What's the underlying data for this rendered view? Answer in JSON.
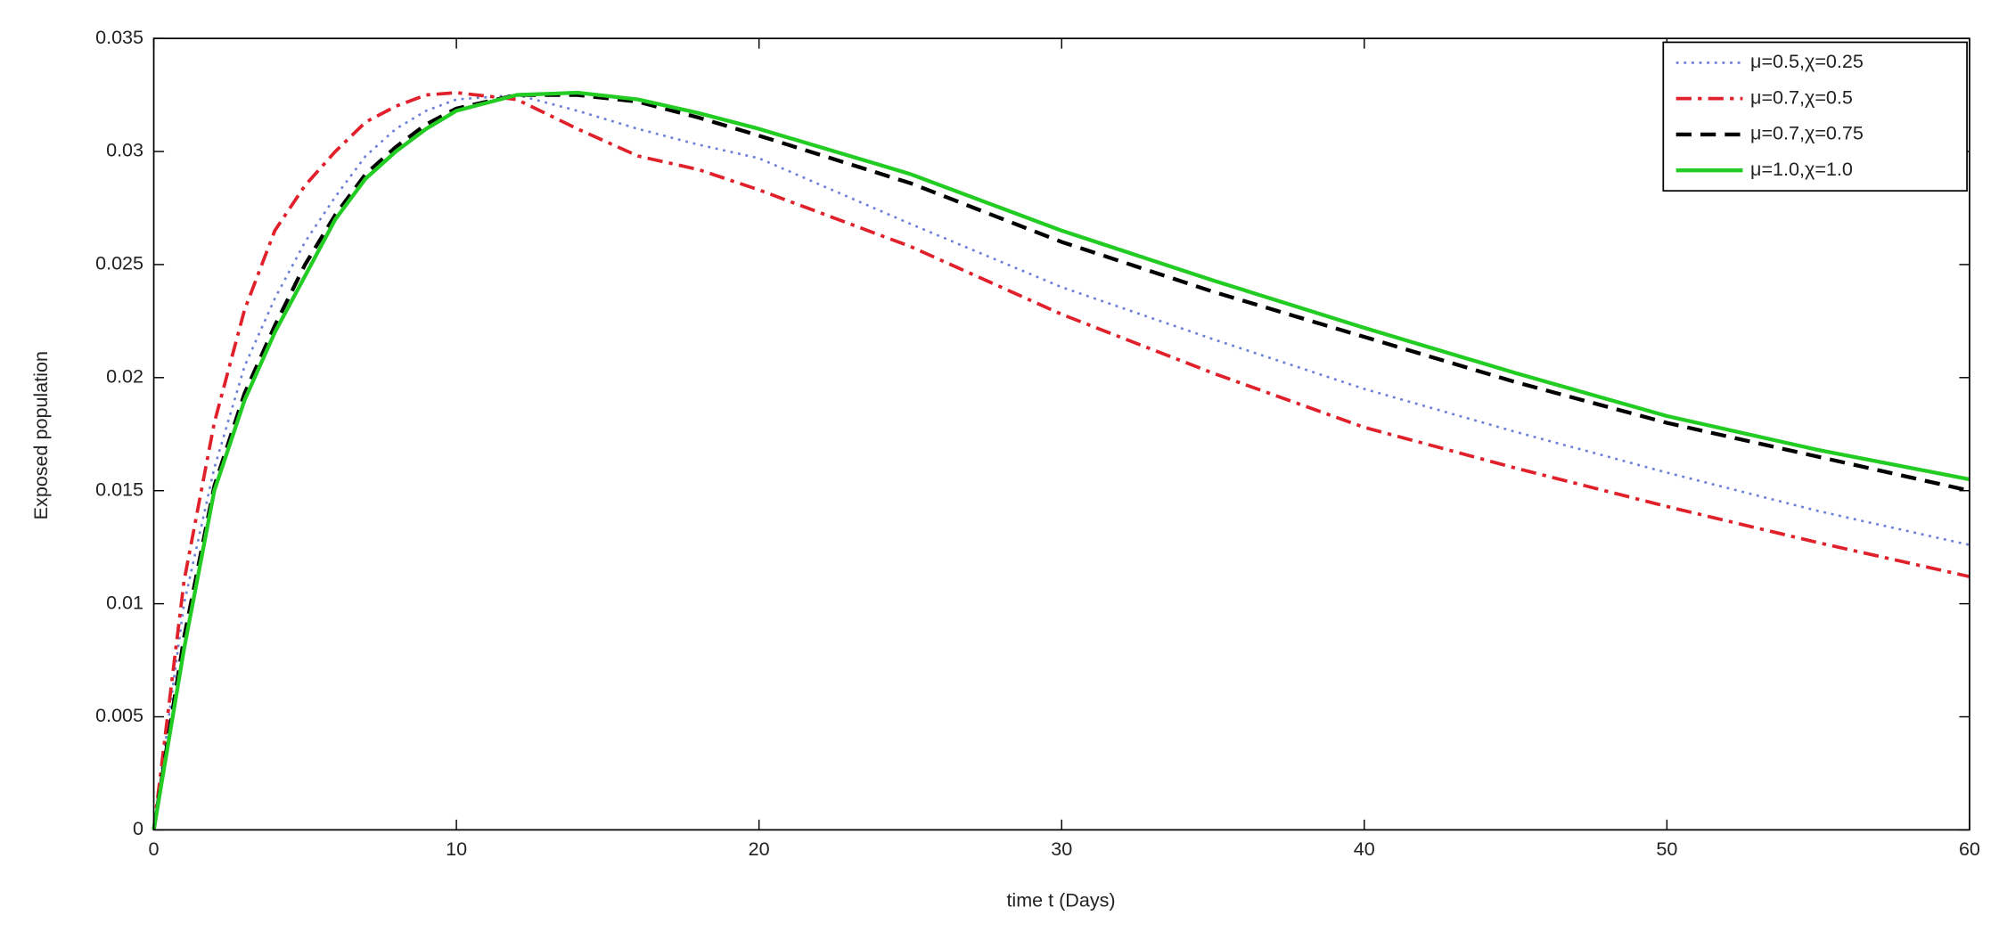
{
  "chart_data": {
    "type": "line",
    "xlabel": "time t (Days)",
    "ylabel": "Exposed population",
    "x": [
      0,
      1,
      2,
      3,
      4,
      5,
      6,
      7,
      8,
      9,
      10,
      12,
      14,
      16,
      18,
      20,
      25,
      30,
      35,
      40,
      45,
      50,
      55,
      60
    ],
    "series": [
      {
        "name": "μ=0.5,χ=0.25",
        "color": "#6b7fd7",
        "dash": "dotted",
        "values": [
          0,
          0.01,
          0.016,
          0.0205,
          0.0235,
          0.026,
          0.028,
          0.0298,
          0.031,
          0.0318,
          0.0323,
          0.0325,
          0.0318,
          0.031,
          0.0303,
          0.0297,
          0.0268,
          0.024,
          0.0217,
          0.0195,
          0.0176,
          0.0158,
          0.0141,
          0.0126
        ]
      },
      {
        "name": "μ=0.7,χ=0.5",
        "color": "#e0202a",
        "dash": "dashdot",
        "values": [
          0,
          0.011,
          0.018,
          0.023,
          0.0265,
          0.0285,
          0.03,
          0.0313,
          0.032,
          0.0325,
          0.0326,
          0.0323,
          0.031,
          0.0298,
          0.0292,
          0.0283,
          0.0258,
          0.0228,
          0.0202,
          0.0178,
          0.016,
          0.0143,
          0.0127,
          0.0112
        ]
      },
      {
        "name": "μ=0.7,χ=0.75",
        "color": "#000000",
        "dash": "dashed",
        "values": [
          0,
          0.0085,
          0.0152,
          0.0193,
          0.0223,
          0.025,
          0.0272,
          0.029,
          0.0302,
          0.0312,
          0.0319,
          0.0325,
          0.0325,
          0.0322,
          0.0315,
          0.0307,
          0.0286,
          0.026,
          0.0238,
          0.0218,
          0.0198,
          0.018,
          0.0165,
          0.015
        ]
      },
      {
        "name": "μ=1.0,χ=1.0",
        "color": "#22cc22",
        "dash": "solid",
        "values": [
          0,
          0.008,
          0.015,
          0.019,
          0.022,
          0.0245,
          0.027,
          0.0288,
          0.03,
          0.031,
          0.0318,
          0.0325,
          0.0326,
          0.0323,
          0.0317,
          0.031,
          0.029,
          0.0265,
          0.0243,
          0.0222,
          0.0202,
          0.0183,
          0.0168,
          0.0155
        ]
      }
    ],
    "xlim": [
      0,
      60
    ],
    "xticks": [
      0,
      10,
      20,
      30,
      40,
      50,
      60
    ],
    "ylim": [
      0,
      0.035
    ],
    "yticks": [
      0,
      0.005,
      0.01,
      0.015,
      0.02,
      0.025,
      0.03,
      0.035
    ],
    "grid": false,
    "legend": "northeast"
  }
}
